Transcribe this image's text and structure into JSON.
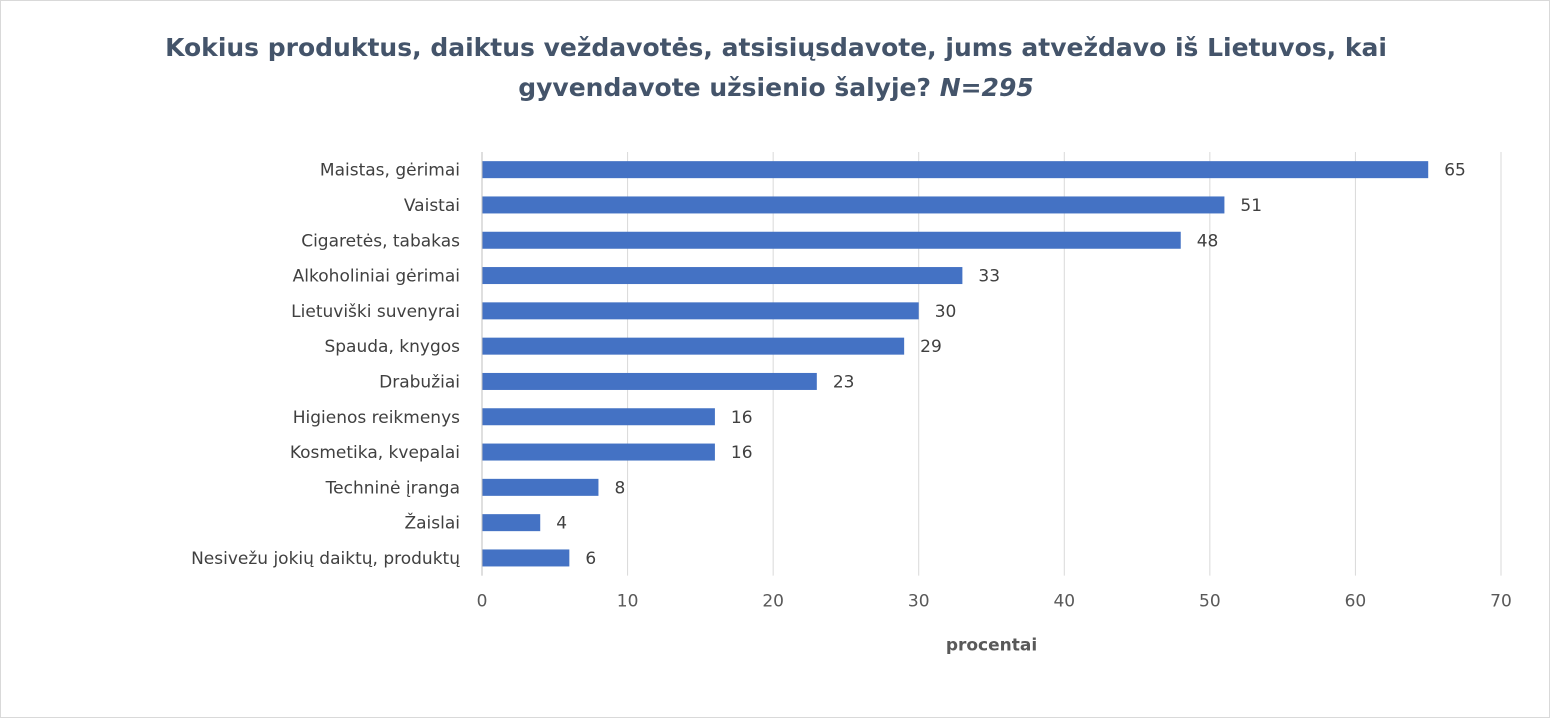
{
  "chart_data": {
    "type": "bar",
    "orientation": "horizontal",
    "title_line1": "Kokius produktus, daiktus veždavotės, atsisiųsdavote, jums atveždavo iš Lietuvos, kai",
    "title_line2": "gyvendavote užsienio šalyje?",
    "title_n": "N=295",
    "xlabel": "procentai",
    "ylabel": "",
    "xlim": [
      0,
      70
    ],
    "x_ticks": [
      "0",
      "10",
      "20",
      "30",
      "40",
      "50",
      "60",
      "70"
    ],
    "grid": true,
    "legend": "none",
    "bar_color": "#4472c4",
    "categories": [
      "Maistas, gėrimai",
      "Vaistai",
      "Cigaretės, tabakas",
      "Alkoholiniai gėrimai",
      "Lietuviški suvenyrai",
      "Spauda, knygos",
      "Drabužiai",
      "Higienos reikmenys",
      "Kosmetika, kvepalai",
      "Techninė įranga",
      "Žaislai",
      "Nesivežu jokių daiktų, produktų"
    ],
    "values": [
      65,
      51,
      48,
      33,
      30,
      29,
      23,
      16,
      16,
      8,
      4,
      6
    ]
  }
}
